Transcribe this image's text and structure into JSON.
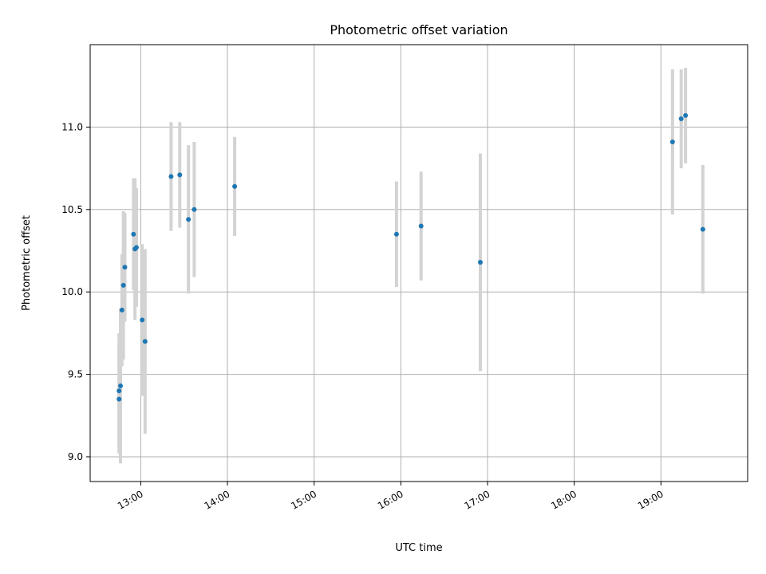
{
  "chart_data": {
    "type": "scatter",
    "title": "Photometric offset variation",
    "xlabel": "UTC time",
    "ylabel": "Photometric offset",
    "x_unit": "UTC time of day (HH:MM)",
    "xlim": [
      "12:25",
      "20:00"
    ],
    "ylim": [
      8.85,
      11.5
    ],
    "x_ticks": [
      "13:00",
      "14:00",
      "15:00",
      "16:00",
      "17:00",
      "18:00",
      "19:00"
    ],
    "y_ticks": [
      9.0,
      9.5,
      10.0,
      10.5,
      11.0
    ],
    "y_tick_labels": [
      "9.0",
      "9.5",
      "10.0",
      "10.5",
      "11.0"
    ],
    "grid": true,
    "legend": null,
    "point_color": "#1f77b4",
    "errorbar_color": "#d3d3d3",
    "points": [
      {
        "x": "12:45",
        "y": 9.4,
        "err": 0.35
      },
      {
        "x": "12:45",
        "y": 9.35,
        "err": 0.33
      },
      {
        "x": "12:46",
        "y": 9.43,
        "err": 0.47
      },
      {
        "x": "12:47",
        "y": 9.89,
        "err": 0.34
      },
      {
        "x": "12:48",
        "y": 10.04,
        "err": 0.45
      },
      {
        "x": "12:49",
        "y": 10.15,
        "err": 0.33
      },
      {
        "x": "12:55",
        "y": 10.35,
        "err": 0.34
      },
      {
        "x": "12:56",
        "y": 10.26,
        "err": 0.43
      },
      {
        "x": "12:57",
        "y": 10.27,
        "err": 0.36
      },
      {
        "x": "13:01",
        "y": 9.83,
        "err": 0.46
      },
      {
        "x": "13:03",
        "y": 9.7,
        "err": 0.56
      },
      {
        "x": "13:21",
        "y": 10.7,
        "err": 0.33
      },
      {
        "x": "13:27",
        "y": 10.71,
        "err": 0.32
      },
      {
        "x": "13:33",
        "y": 10.44,
        "err": 0.45
      },
      {
        "x": "13:37",
        "y": 10.5,
        "err": 0.41
      },
      {
        "x": "14:05",
        "y": 10.64,
        "err": 0.3
      },
      {
        "x": "15:57",
        "y": 10.35,
        "err": 0.32
      },
      {
        "x": "16:14",
        "y": 10.4,
        "err": 0.33
      },
      {
        "x": "16:55",
        "y": 10.18,
        "err": 0.66
      },
      {
        "x": "19:08",
        "y": 10.91,
        "err": 0.44
      },
      {
        "x": "19:14",
        "y": 11.05,
        "err": 0.3
      },
      {
        "x": "19:17",
        "y": 11.07,
        "err": 0.29
      },
      {
        "x": "19:29",
        "y": 10.38,
        "err": 0.39
      }
    ]
  }
}
